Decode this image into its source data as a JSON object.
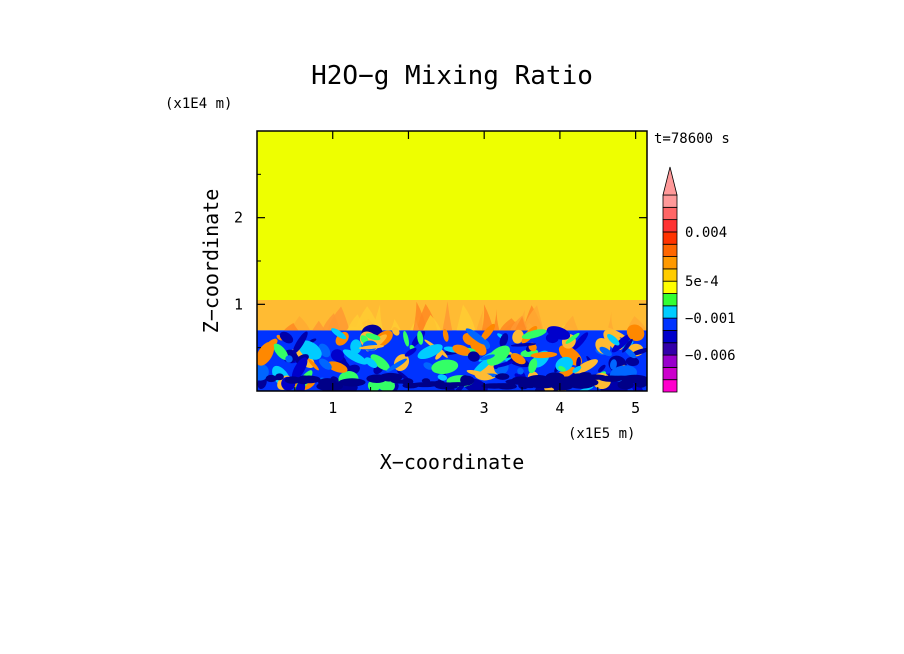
{
  "chart_data": {
    "type": "heatmap",
    "title": "H2O−g Mixing Ratio",
    "xlabel": "X−coordinate",
    "ylabel": "Z−coordinate",
    "x_scale_label": "(x1E5 m)",
    "y_scale_label": "(x1E4 m)",
    "time_label": "t=78600 s",
    "xlim": [
      0,
      5.15
    ],
    "ylim": [
      0,
      3.0
    ],
    "x_ticks": [
      "1",
      "2",
      "3",
      "4",
      "5"
    ],
    "y_ticks": [
      "1",
      "2"
    ],
    "colorbar": {
      "labels": [
        "0.004",
        "5e-4",
        "−0.001",
        "−0.006"
      ],
      "levels": [
        -0.01,
        -0.008,
        -0.006,
        -0.004,
        -0.002,
        -0.001,
        -0.0005,
        0,
        0.0005,
        0.001,
        0.002,
        0.003,
        0.004,
        0.005,
        0.006
      ],
      "colors": [
        "#ff00cc",
        "#cc00cc",
        "#9900cc",
        "#3300aa",
        "#0000cc",
        "#0033ff",
        "#00ccff",
        "#33ff33",
        "#ffff00",
        "#ffcc00",
        "#ff9900",
        "#ff6600",
        "#ff3300",
        "#ff3333",
        "#ff6666",
        "#ff9999"
      ],
      "extend": "max"
    },
    "regions": [
      {
        "name": "upper layer",
        "z_range": [
          1.05,
          3.0
        ],
        "value_class": "5e-4 to 0.001",
        "color": "#eeff00"
      },
      {
        "name": "transition plumes",
        "z_range": [
          0.7,
          1.05
        ],
        "value_class": "0.001 to 0.002",
        "color": "#ffbb33"
      },
      {
        "name": "lower mixed layer",
        "z_range": [
          0.0,
          0.7
        ],
        "value_class": "-0.002 to 0.002",
        "color": "#0033ff"
      }
    ]
  }
}
